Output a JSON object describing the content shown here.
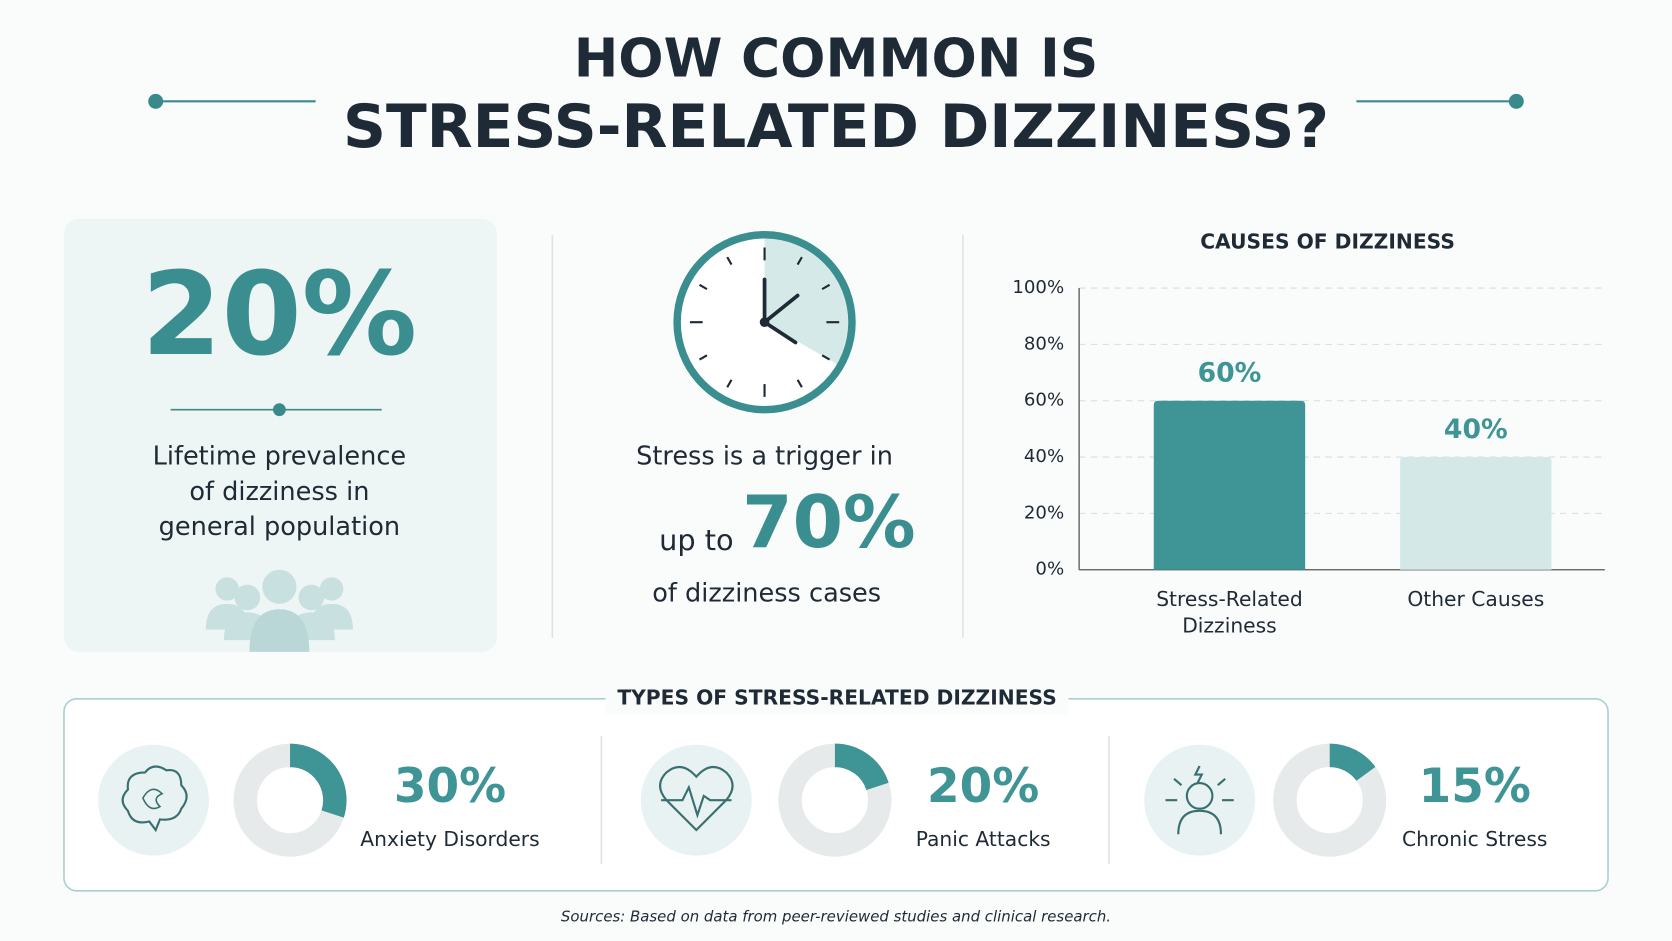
{
  "header": {
    "title_lines": [
      "HOW COMMON IS",
      "STRESS-RELATED DIZZINESS?"
    ]
  },
  "prevalence_card": {
    "stat": "20%",
    "lines": [
      "Lifetime prevalence",
      "of dizziness in",
      "general population"
    ]
  },
  "trigger": {
    "line1": "Stress is a trigger in",
    "prefix": "up to",
    "stat": "70%",
    "line3": "of dizziness cases"
  },
  "chart_data": [
    {
      "type": "bar",
      "title": "CAUSES OF DIZZINESS",
      "categories": [
        "Stress-Related Dizziness",
        "Other Causes"
      ],
      "values": [
        60,
        40
      ],
      "value_labels": [
        "60%",
        "40%"
      ],
      "colors": [
        "#3f9496",
        "#d5e8e8"
      ],
      "label_color": "#3f9496",
      "ylim": [
        0,
        100
      ],
      "yticks": [
        {
          "value": 0,
          "label": "0%"
        },
        {
          "value": 20,
          "label": "20%"
        },
        {
          "value": 40,
          "label": "40%"
        },
        {
          "value": 60,
          "label": "60%"
        },
        {
          "value": 80,
          "label": "80%"
        },
        {
          "value": 100,
          "label": "100%"
        }
      ],
      "grid": true
    },
    {
      "type": "donut",
      "title": "TYPES OF STRESS-RELATED DIZZINESS",
      "categories": [
        "Anxiety Disorders",
        "Panic Attacks",
        "Chronic Stress"
      ],
      "values": [
        30,
        20,
        15
      ],
      "value_labels": [
        "30%",
        "20%",
        "15%"
      ],
      "color": "#3f9496",
      "track_color": "#e6eaea"
    }
  ],
  "sources": "Sources: Based on data from peer-reviewed studies and clinical research."
}
